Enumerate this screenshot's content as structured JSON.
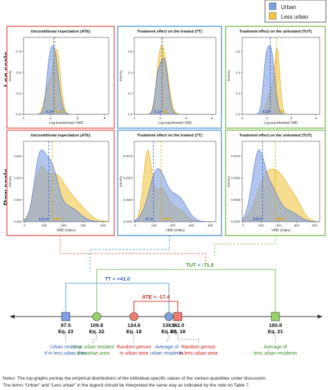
{
  "legend": {
    "items": [
      {
        "label": "Urban",
        "color": "#7f9fe3"
      },
      {
        "label": "Less urban",
        "color": "#f2c744"
      }
    ]
  },
  "row_labels": [
    "Log scale",
    "Raw scale"
  ],
  "panel_titles": [
    "Unconditional expectation (ATE)",
    "Treatment effect on the treated (TT)",
    "Treatment effect on the untreated (TUT)"
  ],
  "frame_colors": [
    "#e8736b",
    "#6aa3d8",
    "#8cc56b"
  ],
  "density_ylabel": "Density",
  "log_xlabel": "Log-transformed VMD",
  "raw_xlabel": "VMD (miles)",
  "log_xticks": [
    "2",
    "4",
    "6",
    "8"
  ],
  "raw_xticks": [
    "0",
    "100",
    "200",
    "300",
    "400"
  ],
  "log_yticks_a": [
    "0.00",
    "0.25",
    "0.50",
    "0.75"
  ],
  "log_yticks_b": [
    "0.0",
    "0.2",
    "0.4",
    "0.6"
  ],
  "raw_yticks_a": [
    "0.000",
    "0.002",
    "0.004",
    "0.006"
  ],
  "raw_yticks_b": [
    "0.0000",
    "0.0025",
    "0.0050",
    "0.0075"
  ],
  "panel_labels": {
    "log_ate": [
      "4.24",
      "4.32"
    ],
    "log_tt": [
      "4.13",
      "4.2"
    ],
    "log_tut": [
      "4.28",
      "4.77"
    ],
    "raw_ate": [
      "124.6",
      "142.0"
    ],
    "raw_tt": [
      "97.5",
      "138.5"
    ],
    "raw_tut": [
      "109.8",
      "180.8"
    ]
  },
  "effects": {
    "tut": "TUT = -71.0",
    "tt": "TT = +41.0",
    "ate": "ATE = -17.4"
  },
  "chart_data": {
    "type": "number-line",
    "markers": [
      {
        "value": "97.5",
        "eq": "Eq. 23",
        "label": [
          "Urban resident",
          "if in less urban area"
        ],
        "shape": "square",
        "color": "#7f9fe3"
      },
      {
        "value": "109.8",
        "eq": "Eq. 22",
        "label": [
          "Less urban resident",
          "if in urban area"
        ],
        "shape": "circle",
        "color": "#9bd16b"
      },
      {
        "value": "124.6",
        "eq": "Eq. 18",
        "label": [
          "Random person",
          "in urban area"
        ],
        "shape": "circle",
        "color": "#f07a70"
      },
      {
        "value": "138.5",
        "eq": "Eq. 20",
        "label": [
          "Average of",
          "urban residents"
        ],
        "shape": "circle",
        "color": "#7f9fe3"
      },
      {
        "value": "142.0",
        "eq": "Eq. 18",
        "label": [
          "Random person",
          "in less urban area"
        ],
        "shape": "square",
        "color": "#f07a70"
      },
      {
        "value": "180.8",
        "eq": "Eq. 21",
        "label": [
          "Average of",
          "less urban residents"
        ],
        "shape": "square",
        "color": "#9bd16b"
      }
    ],
    "effects": [
      {
        "name": "TUT",
        "value": -71.0
      },
      {
        "name": "TT",
        "value": 41.0
      },
      {
        "name": "ATE",
        "value": -17.4
      }
    ]
  },
  "notes": [
    "Notes: The top graphs portray the empirical distributions of the individual-specific values of the various quantities under discussion.",
    "The terms “Urban” and “Less urban” in the legend should be interpreted the same way as indicated by the note on Table 7."
  ]
}
